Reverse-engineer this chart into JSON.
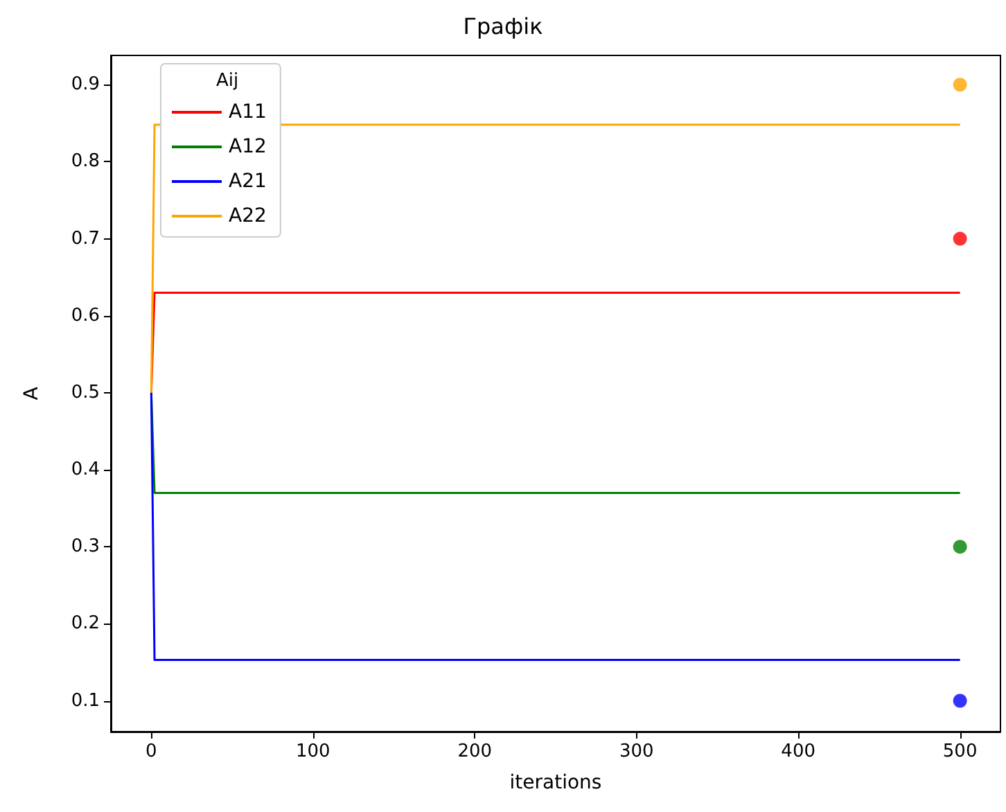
{
  "chart_data": {
    "type": "line",
    "title": "Графік",
    "xlabel": "iterations",
    "ylabel": "A",
    "legend_title": "Aij",
    "legend": "top left",
    "xlim": [
      -25,
      525
    ],
    "ylim": [
      0.06,
      0.938
    ],
    "xticks": [
      0,
      100,
      200,
      300,
      400,
      500
    ],
    "yticks": [
      0.1,
      0.2,
      0.3,
      0.4,
      0.5,
      0.6,
      0.7,
      0.8,
      0.9
    ],
    "series": [
      {
        "name": "A11",
        "color": "#ff0000",
        "x": [
          0,
          2,
          500
        ],
        "values": [
          0.5,
          0.63,
          0.63
        ]
      },
      {
        "name": "A12",
        "color": "#008000",
        "x": [
          0,
          2,
          500
        ],
        "values": [
          0.5,
          0.37,
          0.37
        ]
      },
      {
        "name": "A21",
        "color": "#0000ff",
        "x": [
          0,
          2,
          500
        ],
        "values": [
          0.5,
          0.153,
          0.153
        ]
      },
      {
        "name": "A22",
        "color": "#ffa500",
        "x": [
          0,
          2,
          500
        ],
        "values": [
          0.5,
          0.848,
          0.848
        ]
      },
      {
        "type": "scatter",
        "marker": "circle",
        "x": [
          500,
          500,
          500,
          500
        ],
        "values": [
          0.9,
          0.7,
          0.3,
          0.1
        ],
        "colors": [
          "#ffa500",
          "#ff0000",
          "#008000",
          "#0000ff"
        ]
      }
    ]
  }
}
